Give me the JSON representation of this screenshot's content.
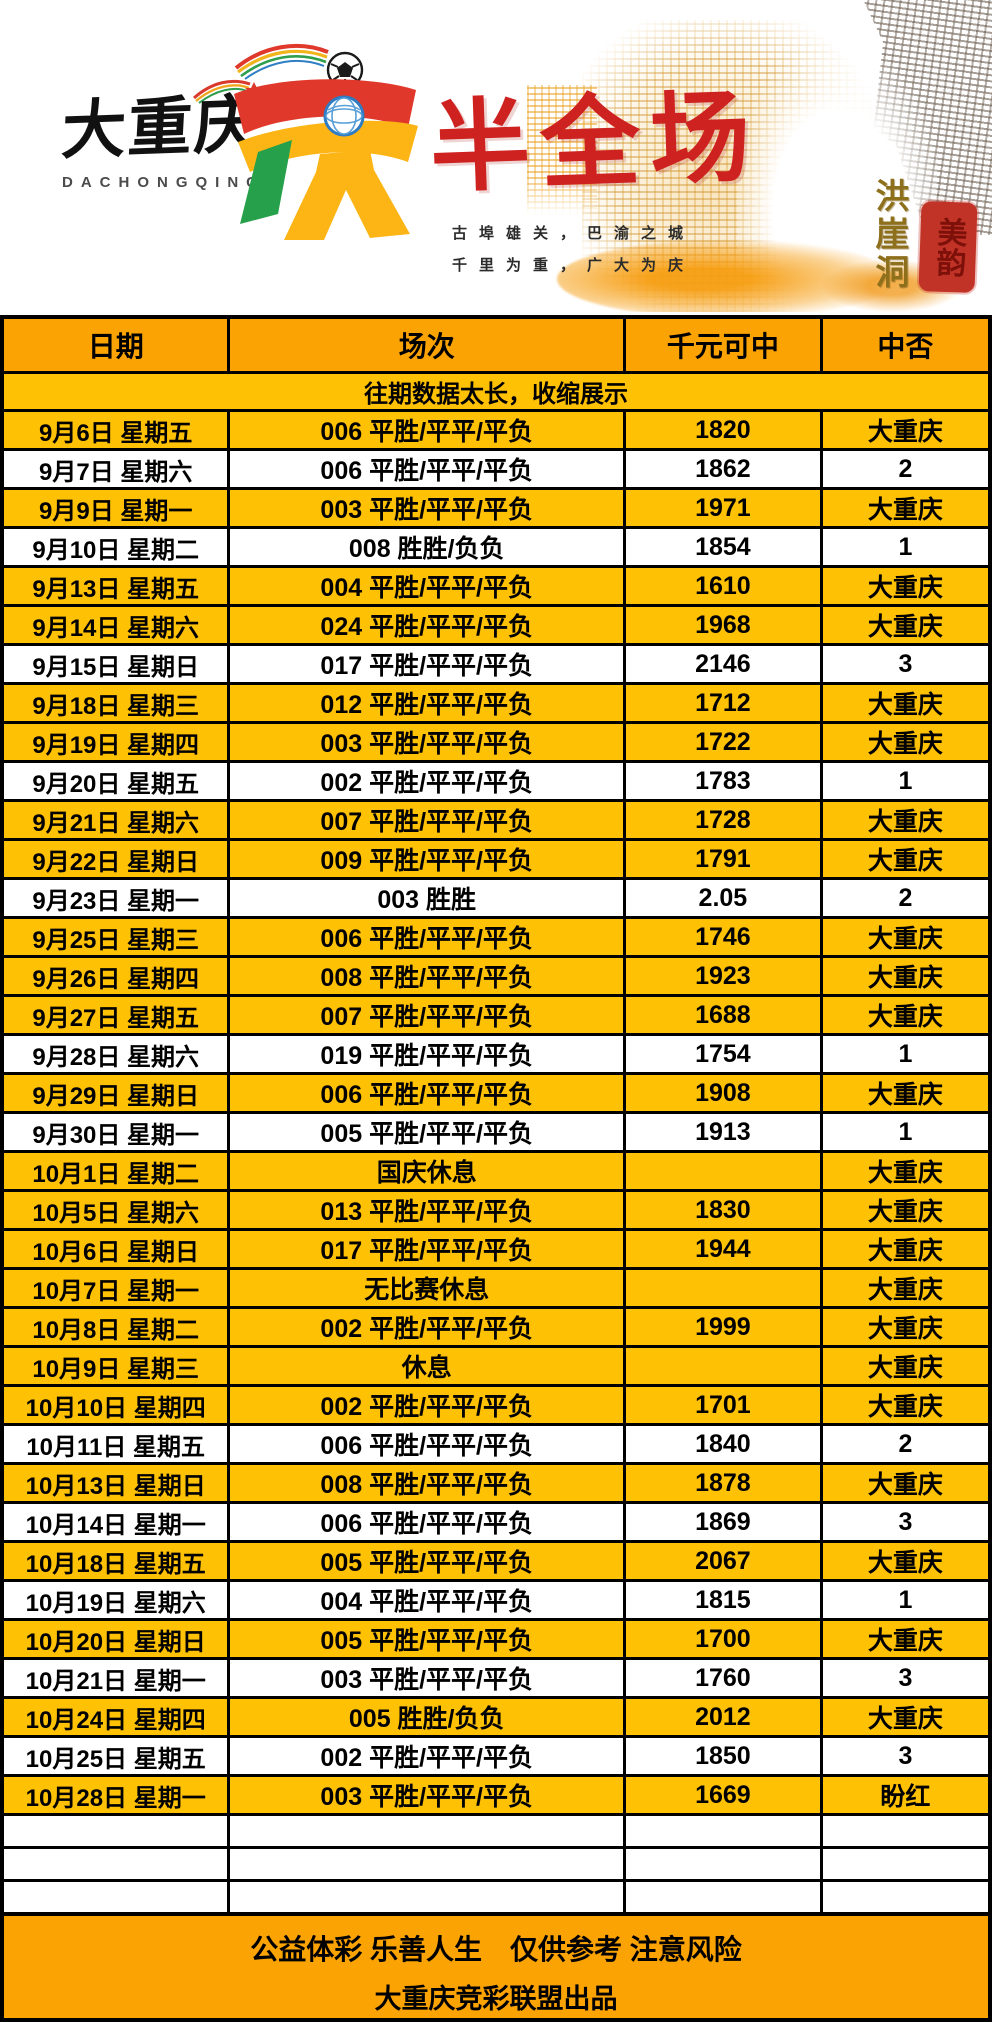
{
  "banner": {
    "brand_cn": "大重庆",
    "brand_en": "DACHONGQING",
    "title": "半全场",
    "slogan_line1": "古埠雄关，巴渝之城",
    "slogan_line2": "千里为重，广大为庆",
    "art_vertical_title": "洪崖洞",
    "seal_text": "美韵"
  },
  "colors": {
    "orange": "#FBA303",
    "gold": "#FFC103",
    "row_white": "#FFFFFF",
    "border": "#000000",
    "title_red": "#CE2220",
    "seal_red": "#C23327"
  },
  "table": {
    "columns": [
      "日期",
      "场次",
      "千元可中",
      "中否"
    ],
    "notice": "往期数据太长，收缩展示",
    "empty_row_count": 3,
    "rows": [
      {
        "date": "9月6日 星期五",
        "match": "006 平胜/平平/平负",
        "payout": "1820",
        "result": "大重庆",
        "tone": "gold"
      },
      {
        "date": "9月7日 星期六",
        "match": "006 平胜/平平/平负",
        "payout": "1862",
        "result": "2",
        "tone": "white"
      },
      {
        "date": "9月9日 星期一",
        "match": "003 平胜/平平/平负",
        "payout": "1971",
        "result": "大重庆",
        "tone": "gold"
      },
      {
        "date": "9月10日 星期二",
        "match": "008 胜胜/负负",
        "payout": "1854",
        "result": "1",
        "tone": "white"
      },
      {
        "date": "9月13日 星期五",
        "match": "004 平胜/平平/平负",
        "payout": "1610",
        "result": "大重庆",
        "tone": "gold"
      },
      {
        "date": "9月14日 星期六",
        "match": "024 平胜/平平/平负",
        "payout": "1968",
        "result": "大重庆",
        "tone": "gold"
      },
      {
        "date": "9月15日 星期日",
        "match": "017 平胜/平平/平负",
        "payout": "2146",
        "result": "3",
        "tone": "white"
      },
      {
        "date": "9月18日 星期三",
        "match": "012 平胜/平平/平负",
        "payout": "1712",
        "result": "大重庆",
        "tone": "gold"
      },
      {
        "date": "9月19日 星期四",
        "match": "003 平胜/平平/平负",
        "payout": "1722",
        "result": "大重庆",
        "tone": "gold"
      },
      {
        "date": "9月20日 星期五",
        "match": "002 平胜/平平/平负",
        "payout": "1783",
        "result": "1",
        "tone": "white"
      },
      {
        "date": "9月21日 星期六",
        "match": "007 平胜/平平/平负",
        "payout": "1728",
        "result": "大重庆",
        "tone": "gold"
      },
      {
        "date": "9月22日 星期日",
        "match": "009 平胜/平平/平负",
        "payout": "1791",
        "result": "大重庆",
        "tone": "gold"
      },
      {
        "date": "9月23日 星期一",
        "match": "003 胜胜",
        "payout": "2.05",
        "result": "2",
        "tone": "white"
      },
      {
        "date": "9月25日 星期三",
        "match": "006 平胜/平平/平负",
        "payout": "1746",
        "result": "大重庆",
        "tone": "gold"
      },
      {
        "date": "9月26日 星期四",
        "match": "008 平胜/平平/平负",
        "payout": "1923",
        "result": "大重庆",
        "tone": "gold"
      },
      {
        "date": "9月27日 星期五",
        "match": "007 平胜/平平/平负",
        "payout": "1688",
        "result": "大重庆",
        "tone": "gold"
      },
      {
        "date": "9月28日 星期六",
        "match": "019 平胜/平平/平负",
        "payout": "1754",
        "result": "1",
        "tone": "white"
      },
      {
        "date": "9月29日 星期日",
        "match": "006 平胜/平平/平负",
        "payout": "1908",
        "result": "大重庆",
        "tone": "gold"
      },
      {
        "date": "9月30日 星期一",
        "match": "005 平胜/平平/平负",
        "payout": "1913",
        "result": "1",
        "tone": "white"
      },
      {
        "date": "10月1日 星期二",
        "match": "国庆休息",
        "payout": "",
        "result": "大重庆",
        "tone": "gold"
      },
      {
        "date": "10月5日 星期六",
        "match": "013 平胜/平平/平负",
        "payout": "1830",
        "result": "大重庆",
        "tone": "gold"
      },
      {
        "date": "10月6日 星期日",
        "match": "017 平胜/平平/平负",
        "payout": "1944",
        "result": "大重庆",
        "tone": "gold"
      },
      {
        "date": "10月7日 星期一",
        "match": "无比赛休息",
        "payout": "",
        "result": "大重庆",
        "tone": "gold"
      },
      {
        "date": "10月8日 星期二",
        "match": "002 平胜/平平/平负",
        "payout": "1999",
        "result": "大重庆",
        "tone": "gold"
      },
      {
        "date": "10月9日 星期三",
        "match": "休息",
        "payout": "",
        "result": "大重庆",
        "tone": "gold"
      },
      {
        "date": "10月10日 星期四",
        "match": "002 平胜/平平/平负",
        "payout": "1701",
        "result": "大重庆",
        "tone": "gold"
      },
      {
        "date": "10月11日 星期五",
        "match": "006 平胜/平平/平负",
        "payout": "1840",
        "result": "2",
        "tone": "white"
      },
      {
        "date": "10月13日 星期日",
        "match": "008 平胜/平平/平负",
        "payout": "1878",
        "result": "大重庆",
        "tone": "gold"
      },
      {
        "date": "10月14日 星期一",
        "match": "006 平胜/平平/平负",
        "payout": "1869",
        "result": "3",
        "tone": "white"
      },
      {
        "date": "10月18日 星期五",
        "match": "005 平胜/平平/平负",
        "payout": "2067",
        "result": "大重庆",
        "tone": "gold"
      },
      {
        "date": "10月19日 星期六",
        "match": "004 平胜/平平/平负",
        "payout": "1815",
        "result": "1",
        "tone": "white"
      },
      {
        "date": "10月20日 星期日",
        "match": "005 平胜/平平/平负",
        "payout": "1700",
        "result": "大重庆",
        "tone": "gold"
      },
      {
        "date": "10月21日 星期一",
        "match": "003 平胜/平平/平负",
        "payout": "1760",
        "result": "3",
        "tone": "white"
      },
      {
        "date": "10月24日 星期四",
        "match": "005 胜胜/负负",
        "payout": "2012",
        "result": "大重庆",
        "tone": "gold"
      },
      {
        "date": "10月25日 星期五",
        "match": "002 平胜/平平/平负",
        "payout": "1850",
        "result": "3",
        "tone": "white"
      },
      {
        "date": "10月28日 星期一",
        "match": "003 平胜/平平/平负",
        "payout": "1669",
        "result": "盼红",
        "tone": "gold"
      }
    ]
  },
  "footer": {
    "line1": "公益体彩 乐善人生　仅供参考 注意风险",
    "line2": "大重庆竞彩联盟出品"
  }
}
